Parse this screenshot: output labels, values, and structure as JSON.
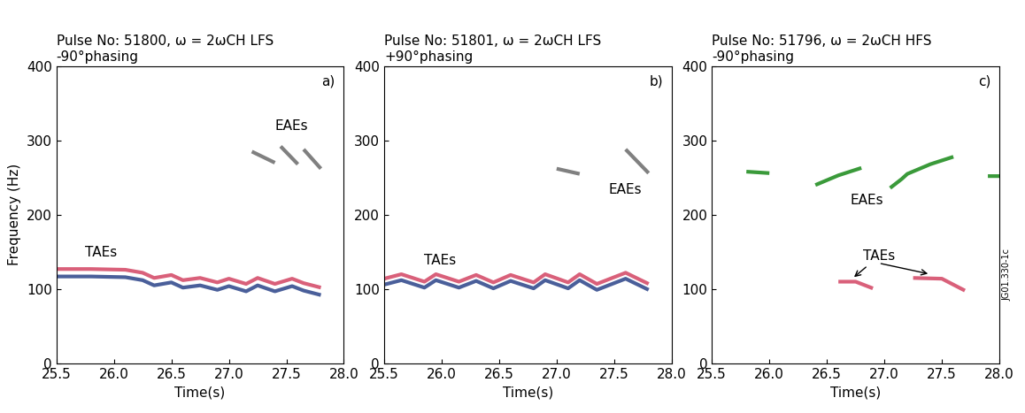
{
  "chart_data": [
    {
      "type": "line",
      "title": "Pulse No: 51800, ω = 2ωCH LFS\n-90°phasing",
      "panel_label": "a)",
      "x_label": "Time(s)",
      "y_label": "Frequency (Hz)",
      "xlim": [
        25.5,
        28.0
      ],
      "xticks": [
        25.5,
        26.0,
        26.5,
        27.0,
        27.5,
        28.0
      ],
      "ylim": [
        0,
        400
      ],
      "yticks": [
        0,
        100,
        200,
        300,
        400
      ],
      "series": [
        {
          "color": "#d9607a",
          "x": [
            25.5,
            25.8,
            26.1,
            26.25,
            26.35,
            26.5,
            26.6,
            26.75,
            26.9,
            27.0,
            27.15,
            27.25,
            27.4,
            27.55,
            27.65,
            27.8
          ],
          "values": [
            127,
            127,
            126,
            122,
            115,
            119,
            112,
            115,
            109,
            114,
            107,
            115,
            107,
            114,
            108,
            102
          ]
        },
        {
          "color": "#4a5f9a",
          "x": [
            25.5,
            25.8,
            26.1,
            26.25,
            26.35,
            26.5,
            26.6,
            26.75,
            26.9,
            27.0,
            27.15,
            27.25,
            27.4,
            27.55,
            27.65,
            27.8
          ],
          "values": [
            117,
            117,
            116,
            112,
            105,
            109,
            102,
            105,
            99,
            104,
            97,
            105,
            97,
            104,
            98,
            92
          ]
        },
        {
          "color": "#808080",
          "x": [
            27.2,
            27.4,
            27.42,
            27.45,
            27.6,
            27.62,
            27.65,
            27.8
          ],
          "values": [
            285,
            270,
            null,
            292,
            268,
            null,
            288,
            262
          ]
        }
      ],
      "annotations": [
        {
          "text": "TAEs",
          "x": 25.75,
          "y": 140
        },
        {
          "text": "EAEs",
          "x": 27.4,
          "y": 310
        }
      ]
    },
    {
      "type": "line",
      "title": "Pulse No: 51801, ω = 2ωCH LFS\n+90°phasing",
      "panel_label": "b)",
      "x_label": "Time(s)",
      "xlim": [
        25.5,
        28.0
      ],
      "xticks": [
        25.5,
        26.0,
        26.5,
        27.0,
        27.5,
        28.0
      ],
      "ylim": [
        0,
        400
      ],
      "yticks": [
        0,
        100,
        200,
        300,
        400
      ],
      "series": [
        {
          "color": "#d9607a",
          "x": [
            25.5,
            25.65,
            25.85,
            25.95,
            26.15,
            26.3,
            26.45,
            26.6,
            26.8,
            26.9,
            27.1,
            27.2,
            27.35,
            27.6,
            27.8
          ],
          "values": [
            114,
            120,
            110,
            120,
            110,
            119,
            109,
            119,
            109,
            120,
            109,
            120,
            107,
            122,
            107
          ]
        },
        {
          "color": "#4a5f9a",
          "x": [
            25.5,
            25.65,
            25.85,
            25.95,
            26.15,
            26.3,
            26.45,
            26.6,
            26.8,
            26.9,
            27.1,
            27.2,
            27.35,
            27.6,
            27.8
          ],
          "values": [
            106,
            112,
            102,
            112,
            102,
            111,
            101,
            111,
            101,
            112,
            101,
            112,
            99,
            114,
            99
          ]
        },
        {
          "color": "#808080",
          "x": [
            27.0,
            27.2,
            27.3,
            27.6,
            27.8
          ],
          "values": [
            262,
            255,
            null,
            288,
            256
          ]
        }
      ],
      "annotations": [
        {
          "text": "TAEs",
          "x": 25.85,
          "y": 130
        },
        {
          "text": "EAEs",
          "x": 27.45,
          "y": 225
        }
      ]
    },
    {
      "type": "line",
      "title": "Pulse No: 51796, ω = 2ωCH HFS\n-90°phasing",
      "panel_label": "c)",
      "side_note": "JG01.330-1c",
      "x_label": "Time(s)",
      "xlim": [
        25.5,
        28.0
      ],
      "xticks": [
        25.5,
        26.0,
        26.5,
        27.0,
        27.5,
        28.0
      ],
      "ylim": [
        0,
        400
      ],
      "yticks": [
        0,
        100,
        200,
        300,
        400
      ],
      "series": [
        {
          "color": "#3a9a3a",
          "x": [
            25.8,
            26.0,
            26.2,
            26.4,
            26.6,
            26.8,
            26.9,
            27.05,
            27.15,
            27.2,
            27.4,
            27.6,
            27.7,
            27.9,
            28.0
          ],
          "values": [
            258,
            256,
            null,
            240,
            253,
            263,
            null,
            236,
            248,
            255,
            268,
            278,
            null,
            252,
            252
          ]
        },
        {
          "color": "#d9607a",
          "x": [
            26.6,
            26.75,
            26.9,
            27.0,
            27.25,
            27.5,
            27.7
          ],
          "values": [
            110,
            110,
            101,
            null,
            115,
            114,
            98
          ]
        }
      ],
      "annotations": [
        {
          "text": "EAEs",
          "x": 26.7,
          "y": 210
        },
        {
          "text": "TAEs",
          "x": 26.95,
          "y": 135,
          "arrows": [
            [
              26.72,
              114
            ],
            [
              27.4,
              120
            ]
          ]
        }
      ]
    }
  ]
}
